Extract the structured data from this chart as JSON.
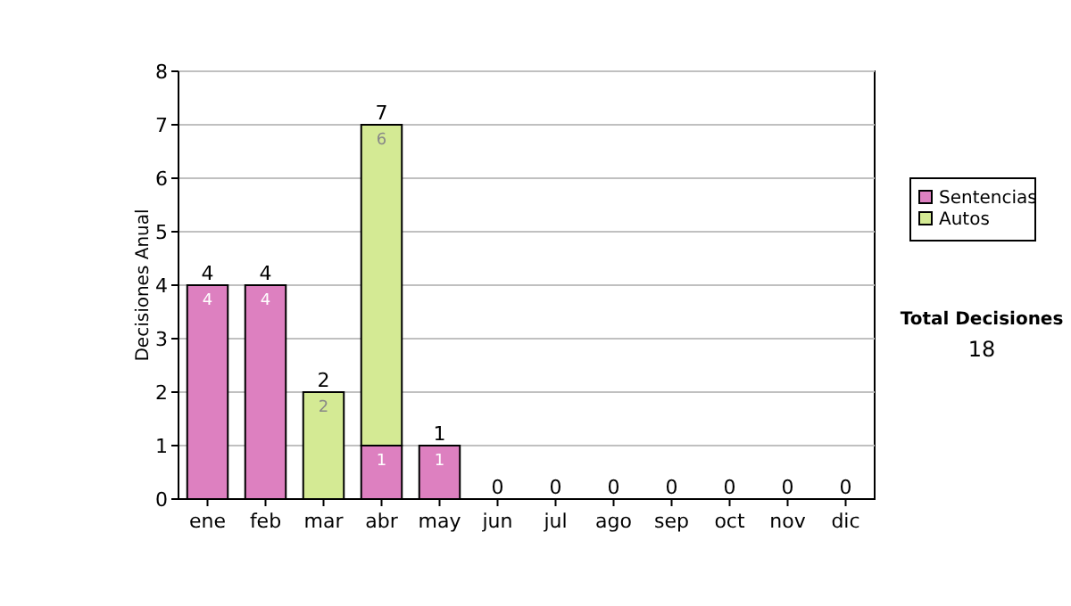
{
  "chart_data": {
    "type": "bar",
    "stacked": true,
    "ylabel": "Decisiones Anual",
    "categories": [
      "ene",
      "feb",
      "mar",
      "abr",
      "may",
      "jun",
      "jul",
      "ago",
      "sep",
      "oct",
      "nov",
      "dic"
    ],
    "series": [
      {
        "name": "Sentencias",
        "color": "#dd80c0",
        "values": [
          4,
          4,
          0,
          1,
          1,
          0,
          0,
          0,
          0,
          0,
          0,
          0
        ],
        "value_labels": [
          "4",
          "4",
          null,
          "1",
          "1",
          null,
          null,
          null,
          null,
          null,
          null,
          null
        ]
      },
      {
        "name": "Autos",
        "color": "#d4ea94",
        "values": [
          0,
          0,
          2,
          6,
          0,
          0,
          0,
          0,
          0,
          0,
          0,
          0
        ],
        "value_labels": [
          null,
          null,
          "2",
          "6",
          null,
          null,
          null,
          null,
          null,
          null,
          null,
          null
        ]
      }
    ],
    "totals": [
      "4",
      "4",
      "2",
      "7",
      "1",
      "0",
      "0",
      "0",
      "0",
      "0",
      "0",
      "0"
    ],
    "ylim": [
      0,
      8
    ],
    "yticks": [
      0,
      1,
      2,
      3,
      4,
      5,
      6,
      7,
      8
    ],
    "grid": "y",
    "legend": "right",
    "annotations": [
      "Total Decisiones",
      "18"
    ]
  }
}
